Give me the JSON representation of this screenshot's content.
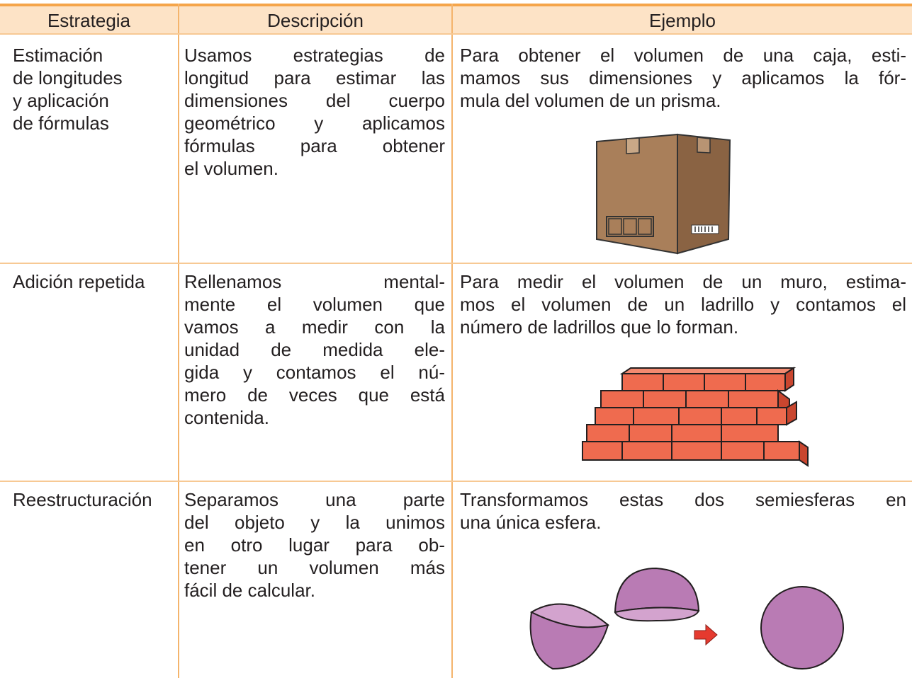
{
  "table": {
    "header": [
      "Estrategia",
      "Descripción",
      "Ejemplo"
    ],
    "rows": [
      {
        "strategy": [
          "Estimación",
          "de longitudes",
          "y aplicación",
          "de fórmulas"
        ],
        "description": [
          "Usamos estrategias de",
          "longitud para estimar las",
          "dimensiones del cuerpo",
          "geométrico y aplicamos",
          "fórmulas para obtener",
          "el volumen."
        ],
        "example": [
          "Para obtener el volumen de una caja, esti-",
          "mamos sus dimensiones y aplicamos la fór-",
          "mula del volumen de un prisma."
        ]
      },
      {
        "strategy": [
          "Adición repetida"
        ],
        "description": [
          "Rellenamos mental-",
          "mente el volumen que",
          "vamos a medir con la",
          "unidad de medida ele-",
          "gida y contamos el nú-",
          "mero de veces que está",
          "contenida."
        ],
        "example": [
          "Para medir el volumen de un muro, estima-",
          "mos el volumen de un ladrillo y contamos el",
          "número de ladrillos que lo forman."
        ]
      },
      {
        "strategy": [
          "Reestructuración"
        ],
        "description": [
          "Separamos una parte",
          "del objeto y la unimos",
          "en otro lugar para ob-",
          "tener un volumen más",
          "fácil de calcular."
        ],
        "example": [
          "Transformamos estas dos semiesferas en",
          "una única esfera."
        ]
      }
    ]
  }
}
